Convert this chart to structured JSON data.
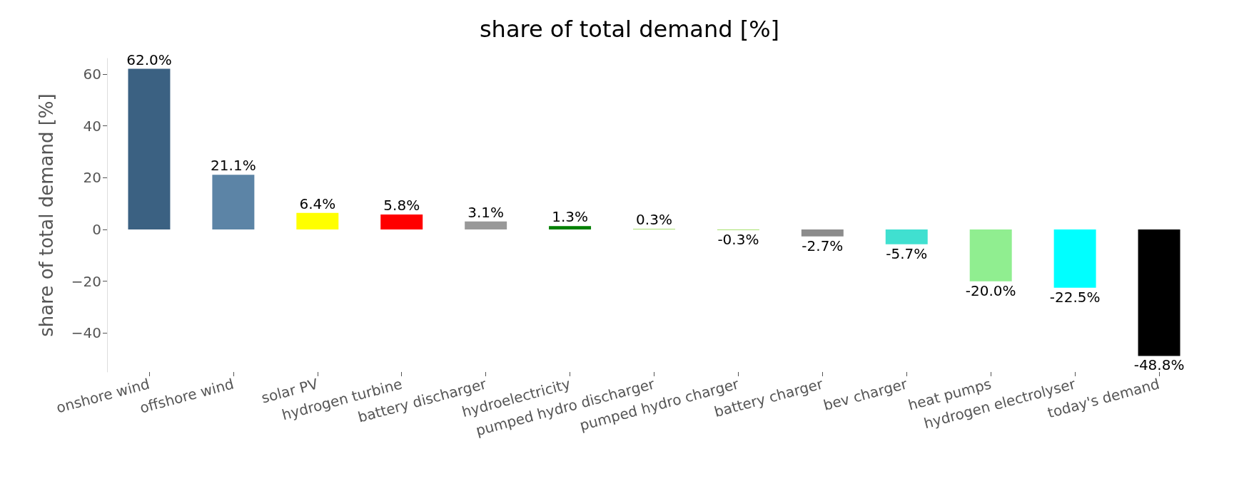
{
  "chart_data": {
    "type": "bar",
    "title": "share of total demand [%]",
    "ylabel": "share of total demand [%]",
    "categories": [
      "onshore wind",
      "offshore wind",
      "solar PV",
      "hydrogen turbine",
      "battery discharger",
      "hydroelectricity",
      "pumped hydro discharger",
      "pumped hydro charger",
      "battery charger",
      "bev charger",
      "heat pumps",
      "hydrogen electrolyser",
      "today's demand"
    ],
    "values": [
      62.0,
      21.1,
      6.4,
      5.8,
      3.1,
      1.3,
      0.3,
      -0.3,
      -2.7,
      -5.7,
      -20.0,
      -22.5,
      -48.8
    ],
    "value_labels": [
      "62.0%",
      "21.1%",
      "6.4%",
      "5.8%",
      "3.1%",
      "1.3%",
      "0.3%",
      "-0.3%",
      "-2.7%",
      "-5.7%",
      "-20.0%",
      "-22.5%",
      "-48.8%"
    ],
    "colors": [
      "#3b6182",
      "#5c84a6",
      "#ffff00",
      "#ff0000",
      "#999999",
      "#008000",
      "#a8e070",
      "#a8e070",
      "#8c8c8c",
      "#40e0d0",
      "#90ee90",
      "#00ffff",
      "#000000"
    ],
    "ylim": [
      -55,
      66
    ],
    "yticks": [
      {
        "value": -40,
        "label": "−40"
      },
      {
        "value": -20,
        "label": "−20"
      },
      0,
      20,
      40,
      60
    ],
    "grid": false
  }
}
